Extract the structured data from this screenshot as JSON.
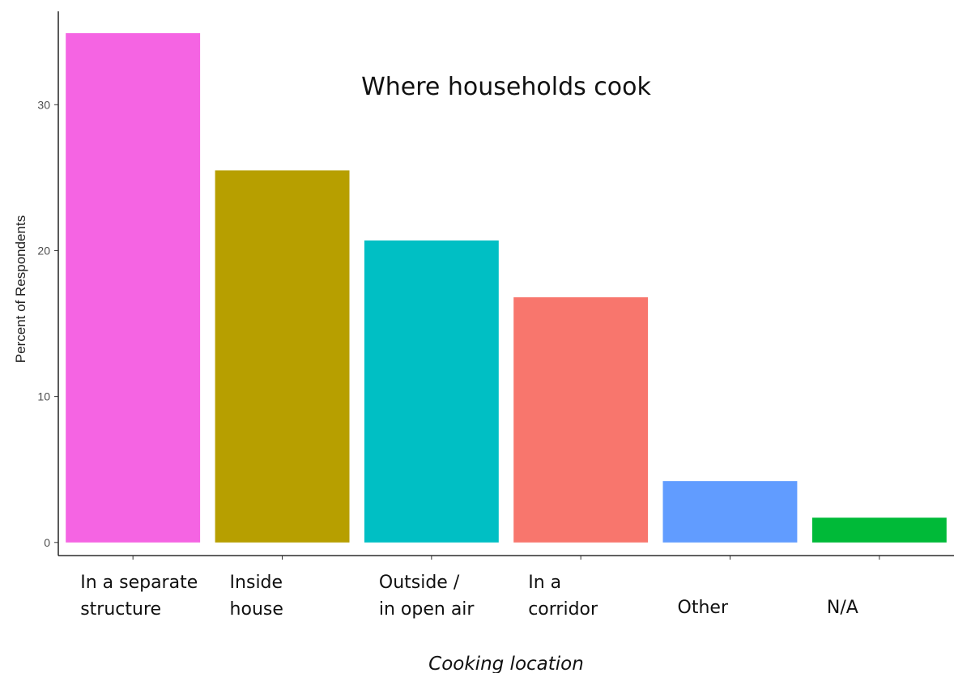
{
  "chart_data": {
    "type": "bar",
    "title": "Where households cook",
    "xlabel": "Cooking location",
    "ylabel": "Percent of Respondents",
    "categories": [
      [
        "In a separate",
        "structure"
      ],
      [
        "Inside",
        "house"
      ],
      [
        "Outside /",
        "in open air"
      ],
      [
        "In a",
        "corridor"
      ],
      [
        "Other"
      ],
      [
        "N/A"
      ]
    ],
    "values": [
      34.9,
      25.5,
      20.7,
      16.8,
      4.2,
      1.7
    ],
    "colors": [
      "#F564E3",
      "#B79F00",
      "#00BFC4",
      "#F8766D",
      "#619CFF",
      "#00BA38"
    ],
    "ylim": [
      -0.9,
      36.4
    ],
    "yticks": [
      0,
      10,
      20,
      30
    ],
    "grid": false,
    "legend": "none"
  }
}
